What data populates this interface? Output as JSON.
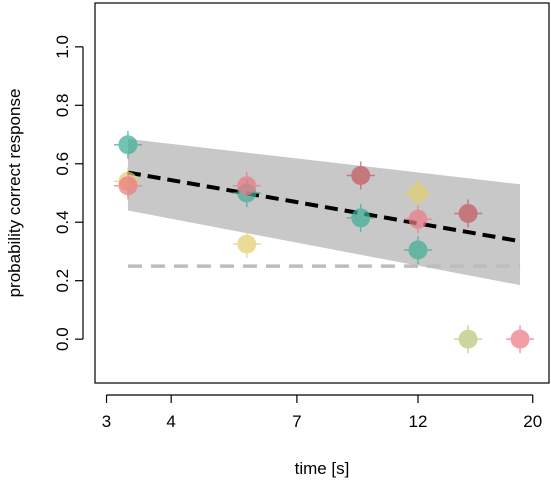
{
  "chart_data": {
    "type": "scatter",
    "title": "",
    "xlabel": "time [s]",
    "ylabel": "probability correct response",
    "x_scale": "log",
    "xlim": [
      2.85,
      21.5
    ],
    "ylim": [
      -0.15,
      1.15
    ],
    "x_ticks": [
      3,
      4,
      7,
      12,
      20
    ],
    "x_tick_labels": [
      "3",
      "4",
      "7",
      "12",
      "20"
    ],
    "y_ticks": [
      0,
      0.2,
      0.4,
      0.6,
      0.8,
      1.0
    ],
    "y_tick_labels": [
      "0.0",
      "0.2",
      "0.4",
      "0.6",
      "0.8",
      "1.0"
    ],
    "grid": false,
    "confidence_band": {
      "color": "#c8c8c8",
      "x": [
        3.3,
        18.9
      ],
      "upper": [
        0.685,
        0.53
      ],
      "lower": [
        0.44,
        0.185
      ]
    },
    "fit_line": {
      "color": "#000000",
      "dash": "dashed",
      "x": [
        3.3,
        18.9
      ],
      "y": [
        0.57,
        0.335
      ]
    },
    "chance_line": {
      "color": "#bdbdbd",
      "dash": "dashed",
      "y": 0.25,
      "x": [
        3.3,
        18.9
      ]
    },
    "series": [
      {
        "color": "#3fae97",
        "points": [
          {
            "x": 3.3,
            "y": 0.665
          },
          {
            "x": 5.6,
            "y": 0.5
          },
          {
            "x": 9.3,
            "y": 0.415
          },
          {
            "x": 12.0,
            "y": 0.305
          }
        ]
      },
      {
        "color": "#e2cf6e",
        "points": [
          {
            "x": 3.3,
            "y": 0.54
          },
          {
            "x": 5.6,
            "y": 0.325
          },
          {
            "x": 12.0,
            "y": 0.5
          }
        ]
      },
      {
        "color": "#ec7a86",
        "points": [
          {
            "x": 3.3,
            "y": 0.525
          },
          {
            "x": 5.6,
            "y": 0.525
          },
          {
            "x": 12.0,
            "y": 0.41
          },
          {
            "x": 18.9,
            "y": 0.0
          }
        ]
      },
      {
        "color": "#b7c778",
        "points": [
          {
            "x": 15.0,
            "y": 0.0
          }
        ]
      },
      {
        "color": "#c45a5f",
        "points": [
          {
            "x": 9.3,
            "y": 0.56
          },
          {
            "x": 15.0,
            "y": 0.43
          }
        ]
      }
    ]
  }
}
